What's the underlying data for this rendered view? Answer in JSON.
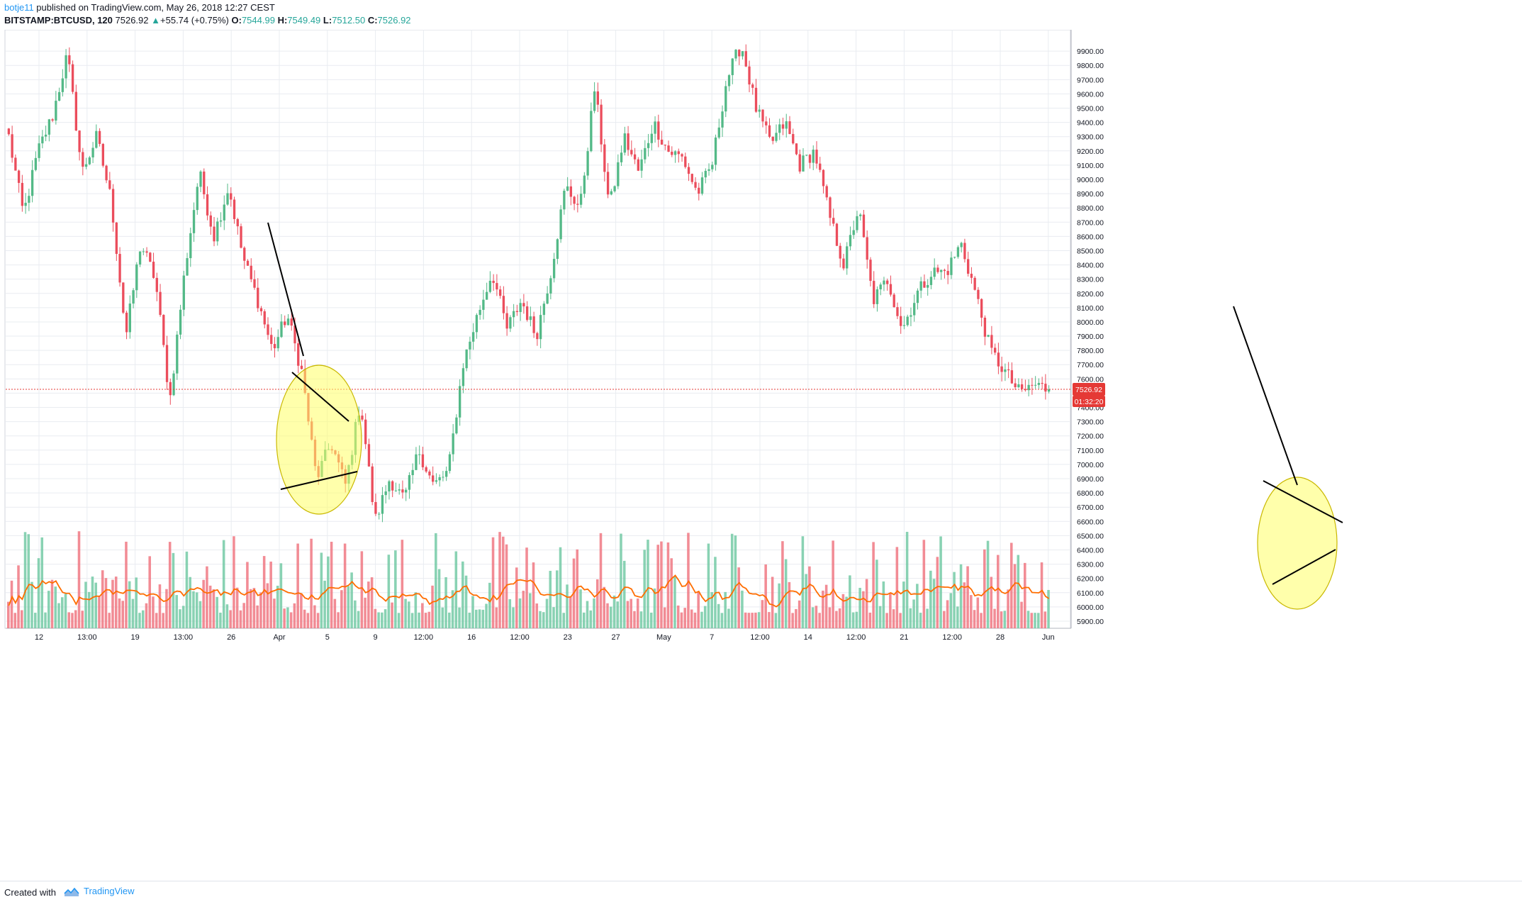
{
  "header": {
    "author": "botje11",
    "publish_text": " published on TradingView.com, May 26, 2018 12:27 CEST",
    "symbol": "BITSTAMP:BTCUSD, 120",
    "last": "7526.92",
    "change": "+55.74 (+0.75%)",
    "o_label": "O:",
    "o_value": "7544.99",
    "h_label": "H:",
    "h_value": "7549.49",
    "l_label": "L:",
    "l_value": "7512.50",
    "c_label": "C:",
    "c_value": "7526.92"
  },
  "footer": {
    "created_with": "Created with",
    "brand": "TradingView"
  },
  "colors": {
    "up": "#53b987",
    "down": "#eb4d5c",
    "wick_up": "#53b987",
    "wick_down": "#eb4d5c",
    "vol_up": "#6cc7a0",
    "vol_down": "#ef6f7b",
    "ma_line": "#ff6d00",
    "price_line": "#e53935",
    "ellipse_fill": "#ffff6680",
    "ellipse_stroke": "#b8a800",
    "trendline": "#000000",
    "grid": "#e9ecf1"
  },
  "price_tag": {
    "value": "7526.92",
    "countdown": "01:32:20"
  },
  "chart_data": {
    "type": "candlestick",
    "symbol": "BITSTAMP:BTCUSD",
    "timeframe": "120",
    "ylim": [
      5850,
      10050
    ],
    "y_ticks": [
      "9900.00",
      "9800.00",
      "9700.00",
      "9600.00",
      "9500.00",
      "9400.00",
      "9300.00",
      "9200.00",
      "9100.00",
      "9000.00",
      "8900.00",
      "8800.00",
      "8700.00",
      "8600.00",
      "8500.00",
      "8400.00",
      "8300.00",
      "8200.00",
      "8100.00",
      "8000.00",
      "7900.00",
      "7800.00",
      "7700.00",
      "7600.00",
      "7500.00",
      "7400.00",
      "7300.00",
      "7200.00",
      "7100.00",
      "7000.00",
      "6900.00",
      "6800.00",
      "6700.00",
      "6600.00",
      "6500.00",
      "6400.00",
      "6300.00",
      "6200.00",
      "6100.00",
      "6000.00",
      "5900.00"
    ],
    "x_labels": [
      "12",
      "13:00",
      "19",
      "13:00",
      "26",
      "Apr",
      "5",
      "9",
      "12:00",
      "16",
      "12:00",
      "23",
      "27",
      "May",
      "7",
      "12:00",
      "14",
      "12:00",
      "21",
      "12:00",
      "28",
      "Jun"
    ],
    "anchor_prices": [
      9300,
      8750,
      9200,
      9450,
      9880,
      9050,
      9300,
      8850,
      7900,
      8550,
      8300,
      7450,
      8350,
      9050,
      8600,
      8950,
      8450,
      8150,
      7800,
      8050,
      7650,
      6900,
      7150,
      6850,
      7450,
      6600,
      6900,
      6750,
      7100,
      6850,
      6950,
      7700,
      8050,
      8350,
      7950,
      8150,
      7900,
      8350,
      8950,
      8800,
      9650,
      8800,
      9300,
      9050,
      9400,
      9200,
      9150,
      8900,
      9100,
      9700,
      9950,
      9500,
      9250,
      9400,
      9100,
      9200,
      8750,
      8400,
      8800,
      8150,
      8300,
      7950,
      8200,
      8350,
      8350,
      8550,
      8200,
      7800,
      7650,
      7500,
      7560,
      7527
    ],
    "last_price": 7526.92,
    "annotations": [
      "trendline-left",
      "triangle-left-upper",
      "triangle-left-lower",
      "circle-left",
      "trendline-right",
      "triangle-right-upper",
      "triangle-right-lower",
      "circle-right"
    ]
  }
}
